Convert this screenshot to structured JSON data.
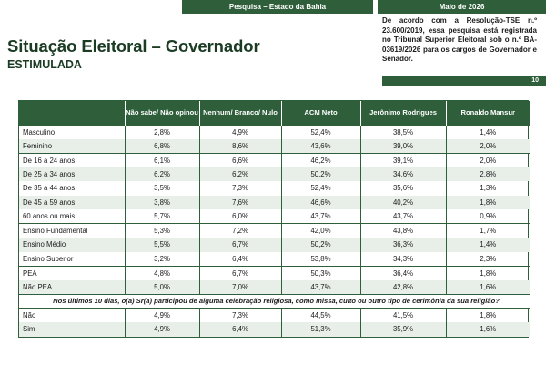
{
  "header": {
    "survey_label": "Pesquisa – Estado da Bahia",
    "date": "Maio de 2026",
    "note": "De acordo com a Resolução-TSE n.º 23.600/2019, essa pesquisa está registrada no Tribunal Superior Eleitoral sob o n.º BA-03619/2026 para os cargos de Governador e Senador.",
    "page_number": "10"
  },
  "title": "Situação Eleitoral – Governador",
  "subtitle": "ESTIMULADA",
  "table": {
    "columns": [
      "",
      "Não sabe/ Não opinou",
      "Nenhum/ Branco/ Nulo",
      "ACM Neto",
      "Jerônimo Rodrigues",
      "Ronaldo Mansur"
    ],
    "groups": [
      {
        "rows": [
          [
            "Masculino",
            "2,8%",
            "4,9%",
            "52,4%",
            "38,5%",
            "1,4%"
          ],
          [
            "Feminino",
            "6,8%",
            "8,6%",
            "43,6%",
            "39,0%",
            "2,0%"
          ]
        ]
      },
      {
        "rows": [
          [
            "De 16 a 24 anos",
            "6,1%",
            "6,6%",
            "46,2%",
            "39,1%",
            "2,0%"
          ],
          [
            "De 25 a 34 anos",
            "6,2%",
            "6,2%",
            "50,2%",
            "34,6%",
            "2,8%"
          ],
          [
            "De 35 a 44 anos",
            "3,5%",
            "7,3%",
            "52,4%",
            "35,6%",
            "1,3%"
          ],
          [
            "De 45 a 59 anos",
            "3,8%",
            "7,6%",
            "46,6%",
            "40,2%",
            "1,8%"
          ],
          [
            "60 anos ou mais",
            "5,7%",
            "6,0%",
            "43,7%",
            "43,7%",
            "0,9%"
          ]
        ]
      },
      {
        "rows": [
          [
            "Ensino Fundamental",
            "5,3%",
            "7,2%",
            "42,0%",
            "43,8%",
            "1,7%"
          ],
          [
            "Ensino Médio",
            "5,5%",
            "6,7%",
            "50,2%",
            "36,3%",
            "1,4%"
          ],
          [
            "Ensino Superior",
            "3,2%",
            "6,4%",
            "53,8%",
            "34,3%",
            "2,3%"
          ]
        ]
      },
      {
        "rows": [
          [
            "PEA",
            "4,8%",
            "6,7%",
            "50,3%",
            "36,4%",
            "1,8%"
          ],
          [
            "Não PEA",
            "5,0%",
            "7,0%",
            "43,7%",
            "42,8%",
            "1,6%"
          ]
        ]
      },
      {
        "question": "Nos últimos 10 dias, o(a) Sr(a) participou de alguma celebração religiosa, como missa, culto ou outro tipo de cerimônia da sua religião?",
        "rows": [
          [
            "Não",
            "4,9%",
            "7,3%",
            "44,5%",
            "41,5%",
            "1,8%"
          ],
          [
            "Sim",
            "4,9%",
            "6,4%",
            "51,3%",
            "35,9%",
            "1,6%"
          ]
        ]
      }
    ]
  }
}
